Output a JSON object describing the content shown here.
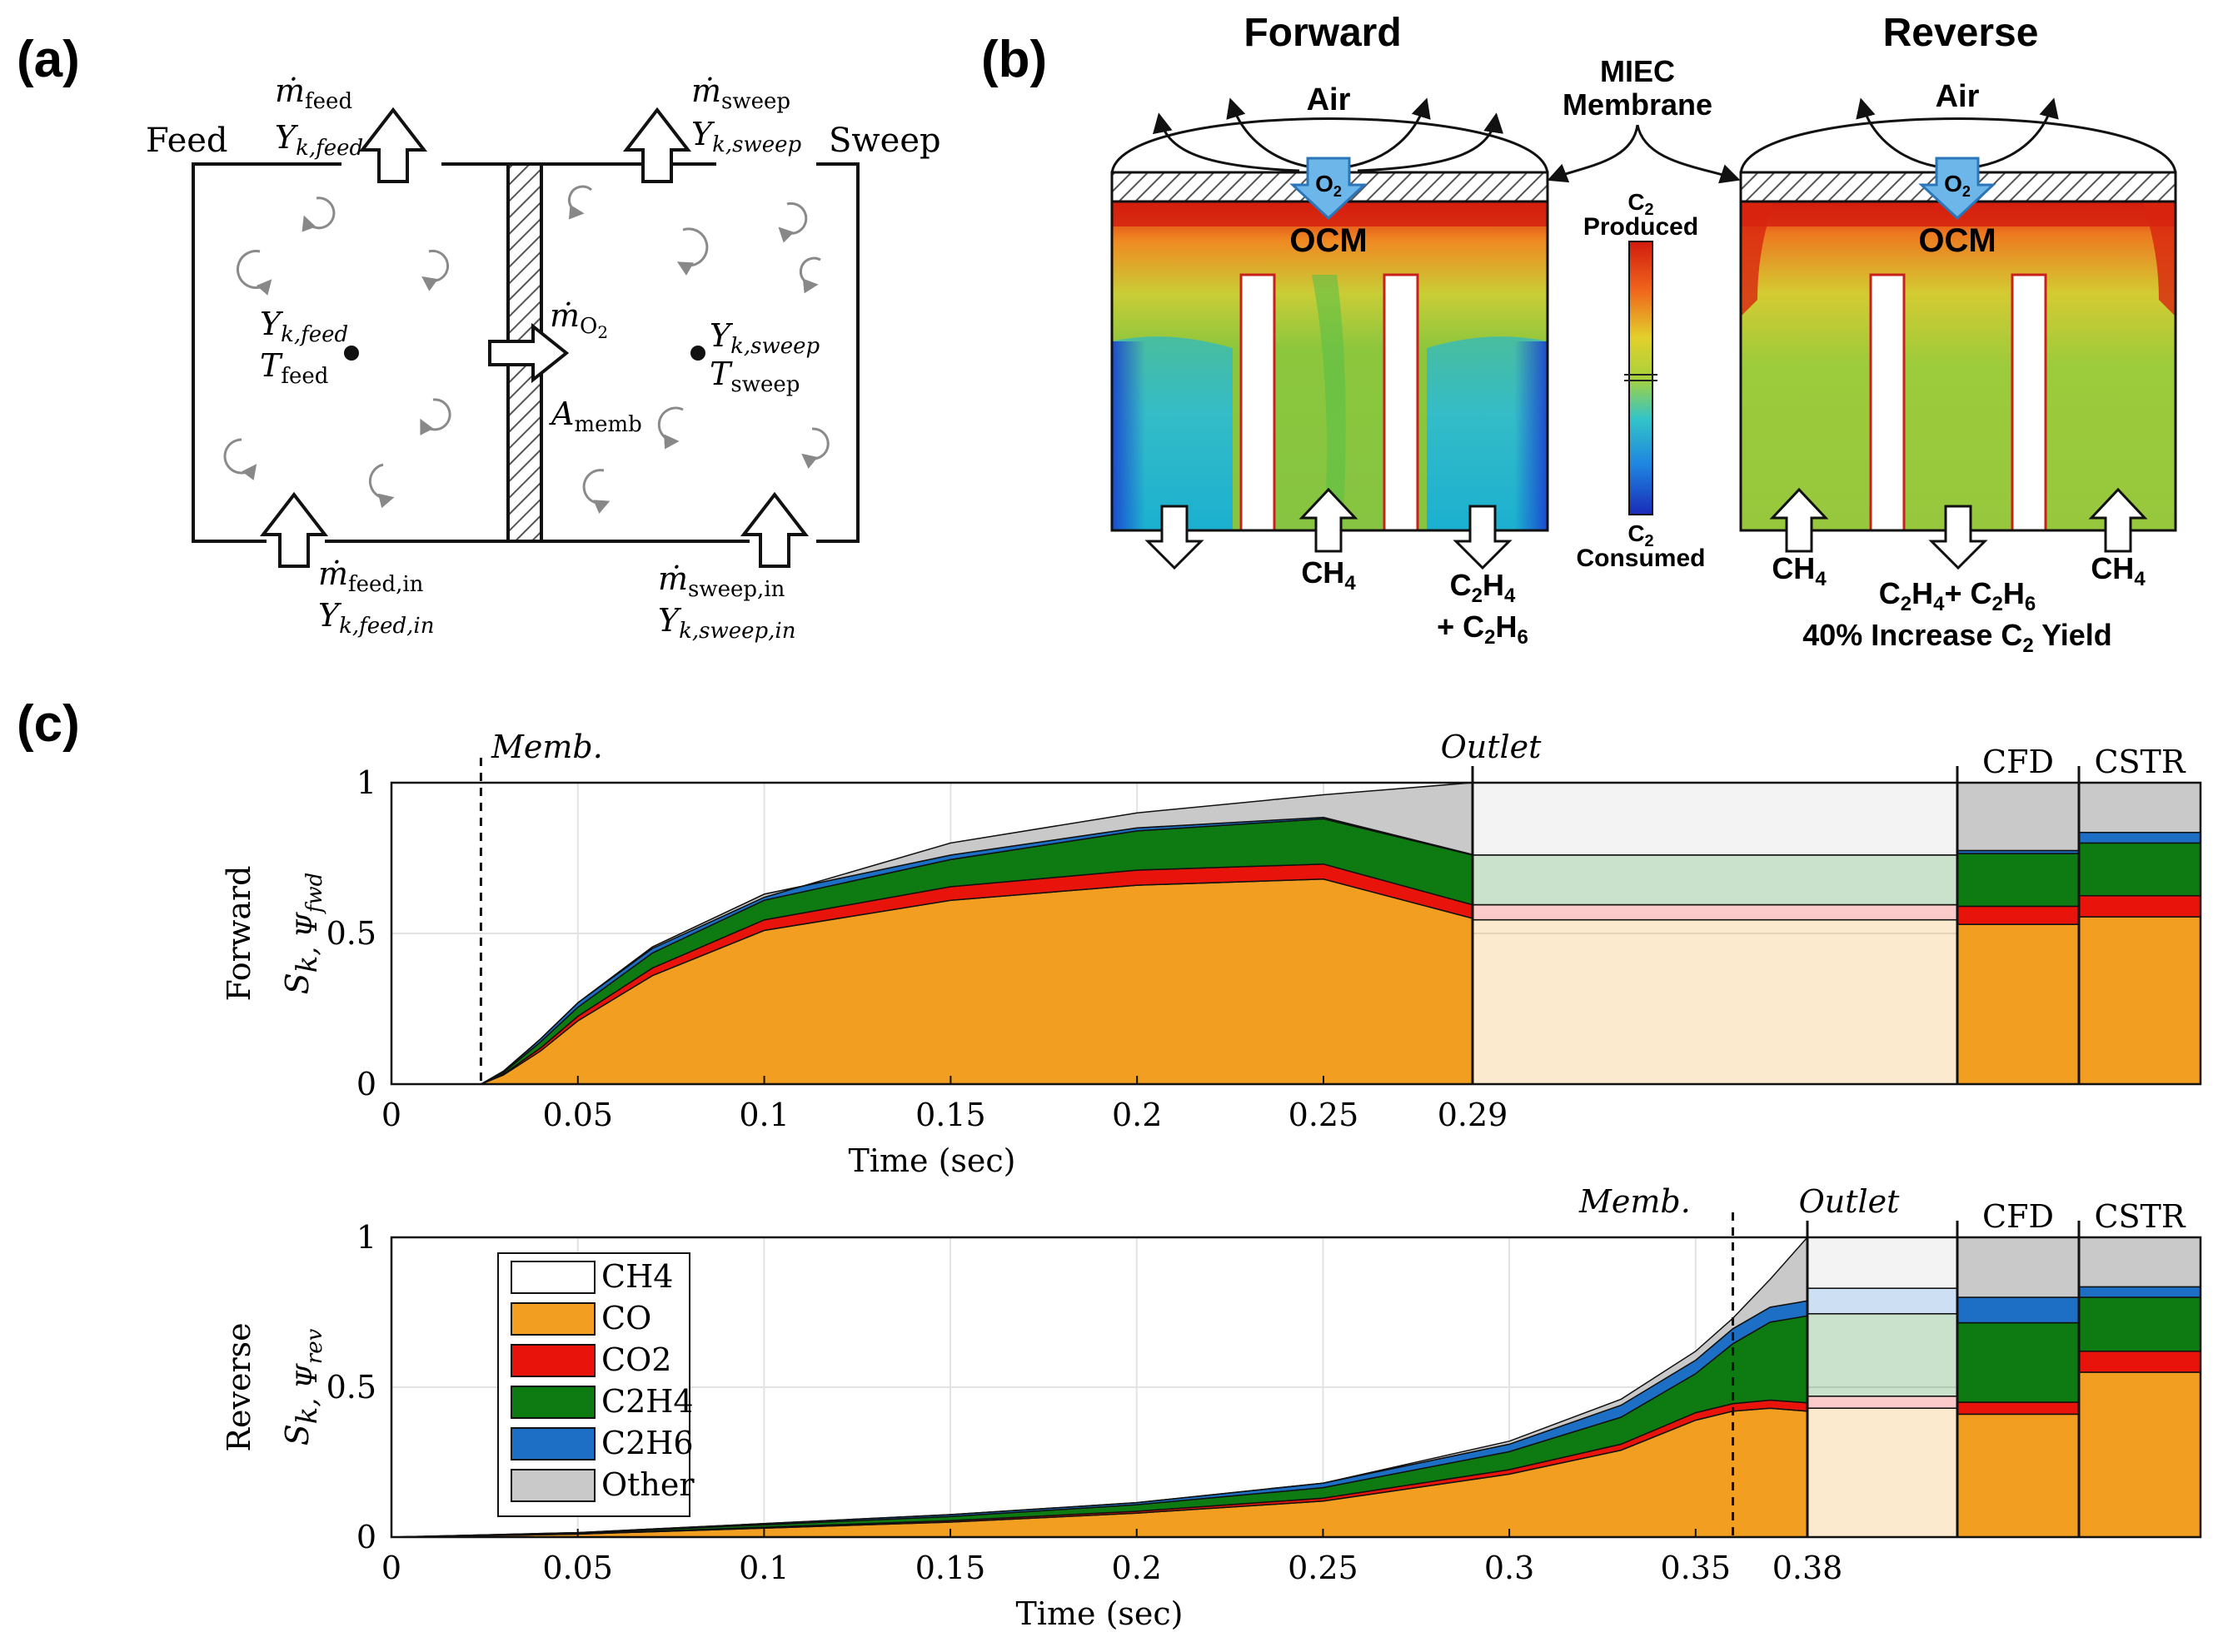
{
  "panel_labels": {
    "a": "(a)",
    "b": "(b)",
    "c": "(c)"
  },
  "panel_a": {
    "feed_label": "Feed",
    "sweep_label": "Sweep",
    "m_feed": "ṁ",
    "m_feed_sub": "feed",
    "y_feed_out": "Y",
    "y_feed_out_sub": "k,feed",
    "m_sweep_sub": "sweep",
    "y_sweep_out_sub": "k,sweep",
    "y_feed_in_sub": "k,feed",
    "t_feed": "T",
    "t_feed_sub": "feed",
    "y_sweep_in_sub": "k,sweep",
    "t_sweep_sub": "sweep",
    "m_o2_sub": "O",
    "m_o2_sub2": "2",
    "a_memb": "A",
    "a_memb_sub": "memb",
    "m_feed_in_sub": "feed,in",
    "y_feed_inlet_sub": "k,feed,in",
    "m_sweep_in_sub": "sweep,in",
    "y_sweep_inlet_sub": "k,sweep,in"
  },
  "panel_b": {
    "forward_title": "Forward",
    "reverse_title": "Reverse",
    "air": "Air",
    "o2": "O",
    "o2_sub": "2",
    "ocm": "OCM",
    "membrane_l1": "MIEC",
    "membrane_l2": "Membrane",
    "cb_top_c": "C",
    "cb_top_sub": "2",
    "cb_top_word": "Produced",
    "cb_bot_c": "C",
    "cb_bot_sub": "2",
    "cb_bot_word": "Consumed",
    "ch4": "CH",
    "ch4_sub": "4",
    "c2h4_a": "C",
    "c2h4_sub1": "2",
    "c2h4_b": "H",
    "c2h4_sub2": "4",
    "c2h6_plus": "+ C",
    "c2h6_sub1": "2",
    "c2h6_b": "H",
    "c2h6_sub2": "6",
    "plus_c": "+ C",
    "increase_l1": "40% Increase C",
    "increase_sub": "2",
    "increase_l2": " Yield",
    "colors": {
      "red": "#d11b0e",
      "orange": "#f19e2a",
      "yellow": "#d8cf2a",
      "green": "#9fcb3a",
      "cyan": "#33bcc8",
      "blue": "#1b4fd8",
      "o2_blue": "#6cb6ea"
    }
  },
  "panel_c": {
    "forward": {
      "ylabel_word": "Forward",
      "ylabel_sym": "S",
      "ylabel_sub": "k, Ψ",
      "ylabel_sub2": "fwd",
      "xlabel": "Time (sec)",
      "memb_label": "Memb.",
      "outlet_label": "Outlet",
      "cfd_label": "CFD",
      "cstr_label": "CSTR",
      "x_ticks": [
        "0",
        "0.05",
        "0.1",
        "0.15",
        "0.2",
        "0.25",
        "0.29"
      ],
      "y_ticks": [
        "0",
        "0.5",
        "1"
      ]
    },
    "reverse": {
      "ylabel_word": "Reverse",
      "ylabel_sym": "S",
      "ylabel_sub": "k, Ψ",
      "ylabel_sub2": "rev",
      "xlabel": "Time (sec)",
      "memb_label": "Memb.",
      "outlet_label": "Outlet",
      "cfd_label": "CFD",
      "cstr_label": "CSTR",
      "x_ticks": [
        "0",
        "0.05",
        "0.1",
        "0.15",
        "0.2",
        "0.25",
        "0.3",
        "0.35",
        "0.38"
      ],
      "y_ticks": [
        "0",
        "0.5",
        "1"
      ]
    },
    "legend": [
      {
        "name": "CH4",
        "color": "#ffffff"
      },
      {
        "name": "CO",
        "color": "#f19e21"
      },
      {
        "name": "CO2",
        "color": "#e8140c"
      },
      {
        "name": "C2H4",
        "color": "#0d7a12"
      },
      {
        "name": "C2H6",
        "color": "#1c6fc4"
      },
      {
        "name": "Other",
        "color": "#c9c9c9"
      }
    ]
  },
  "chart_data": [
    {
      "type": "area",
      "title": "",
      "xlabel": "Time (sec)",
      "ylabel": "S_k,Ψfwd",
      "xlim": [
        0,
        0.29
      ],
      "ylim": [
        0,
        1
      ],
      "stack_order": [
        "CO",
        "CO2",
        "C2H4",
        "C2H6",
        "Other"
      ],
      "membrane_time": 0.024,
      "x": [
        0.024,
        0.03,
        0.04,
        0.05,
        0.07,
        0.1,
        0.15,
        0.2,
        0.25,
        0.29
      ],
      "series": [
        {
          "name": "CH4",
          "values": [
            1.0,
            0.96,
            0.86,
            0.74,
            0.56,
            0.38,
            0.2,
            0.1,
            0.04,
            0.0
          ]
        },
        {
          "name": "CO",
          "values": [
            0.0,
            0.03,
            0.11,
            0.21,
            0.36,
            0.51,
            0.61,
            0.66,
            0.68,
            0.55
          ]
        },
        {
          "name": "CO2",
          "values": [
            0.0,
            0.003,
            0.01,
            0.015,
            0.025,
            0.035,
            0.045,
            0.05,
            0.05,
            0.045
          ]
        },
        {
          "name": "C2H4",
          "values": [
            0.0,
            0.005,
            0.02,
            0.03,
            0.05,
            0.065,
            0.09,
            0.13,
            0.15,
            0.165
          ]
        },
        {
          "name": "C2H6",
          "values": [
            0.0,
            0.003,
            0.01,
            0.015,
            0.02,
            0.02,
            0.015,
            0.01,
            0.005,
            0.002
          ]
        },
        {
          "name": "Other",
          "values": [
            0.0,
            0.002,
            0.0,
            0.0,
            -0.005,
            -0.01,
            0.04,
            0.05,
            0.075,
            0.238
          ]
        }
      ],
      "outlet_stack": {
        "CO": 0.545,
        "CO2": 0.05,
        "C2H4": 0.165,
        "C2H6": 0.0,
        "Other": 0.24
      },
      "cfd_stack": {
        "CO": 0.53,
        "CO2": 0.06,
        "C2H4": 0.175,
        "C2H6": 0.01,
        "Other": 0.225
      },
      "cstr_stack": {
        "CO": 0.555,
        "CO2": 0.07,
        "C2H4": 0.175,
        "C2H6": 0.035,
        "Other": 0.165
      }
    },
    {
      "type": "area",
      "title": "",
      "xlabel": "Time (sec)",
      "ylabel": "S_k,Ψrev",
      "xlim": [
        0,
        0.38
      ],
      "ylim": [
        0,
        1
      ],
      "stack_order": [
        "CO",
        "CO2",
        "C2H4",
        "C2H6",
        "Other"
      ],
      "membrane_time": 0.36,
      "x": [
        0.0,
        0.05,
        0.1,
        0.15,
        0.2,
        0.25,
        0.3,
        0.33,
        0.35,
        0.36,
        0.37,
        0.38
      ],
      "series": [
        {
          "name": "CH4",
          "values": [
            1.0,
            0.985,
            0.955,
            0.925,
            0.885,
            0.82,
            0.68,
            0.54,
            0.38,
            0.27,
            0.14,
            0.0
          ]
        },
        {
          "name": "CO",
          "values": [
            0.0,
            0.01,
            0.03,
            0.05,
            0.08,
            0.12,
            0.21,
            0.29,
            0.39,
            0.42,
            0.43,
            0.42
          ]
        },
        {
          "name": "CO2",
          "values": [
            0.0,
            0.001,
            0.003,
            0.005,
            0.006,
            0.01,
            0.015,
            0.02,
            0.025,
            0.025,
            0.027,
            0.028
          ]
        },
        {
          "name": "C2H4",
          "values": [
            0.0,
            0.003,
            0.008,
            0.014,
            0.022,
            0.035,
            0.06,
            0.09,
            0.13,
            0.2,
            0.26,
            0.29
          ]
        },
        {
          "name": "C2H6",
          "values": [
            0.0,
            0.001,
            0.004,
            0.006,
            0.007,
            0.015,
            0.025,
            0.04,
            0.045,
            0.05,
            0.05,
            0.05
          ]
        },
        {
          "name": "Other",
          "values": [
            0.0,
            0.0,
            0.0,
            0.0,
            0.0,
            0.0,
            0.01,
            0.02,
            0.03,
            0.035,
            0.093,
            0.212
          ]
        }
      ],
      "outlet_stack": {
        "CO": 0.43,
        "CO2": 0.04,
        "C2H4": 0.275,
        "C2H6": 0.085,
        "Other": 0.17
      },
      "cfd_stack": {
        "CO": 0.41,
        "CO2": 0.04,
        "C2H4": 0.265,
        "C2H6": 0.085,
        "Other": 0.2
      },
      "cstr_stack": {
        "CO": 0.55,
        "CO2": 0.07,
        "C2H4": 0.18,
        "C2H6": 0.035,
        "Other": 0.165
      }
    }
  ]
}
